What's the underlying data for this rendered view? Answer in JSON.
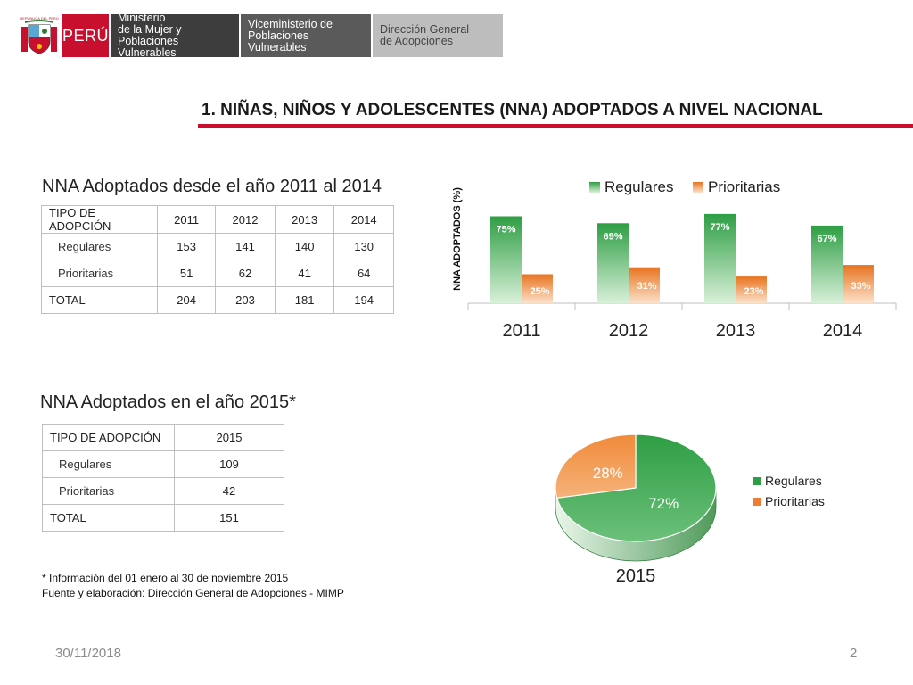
{
  "header": {
    "country": "PERÚ",
    "ministerio": [
      "Ministerio",
      "de la Mujer y",
      "Poblaciones Vulnerables"
    ],
    "viceministerio": [
      "Viceministerio de",
      "Poblaciones Vulnerables"
    ],
    "direccion": [
      "Dirección General",
      "de Adopciones"
    ],
    "crest_text": "REPÚBLICA DEL PERÚ"
  },
  "main_title": "1. NIÑAS, NIÑOS Y ADOLESCENTES (NNA) ADOPTADOS A NIVEL NACIONAL",
  "section1": {
    "title": "NNA Adoptados desde el año 2011 al 2014",
    "table": {
      "headers": [
        "TIPO DE ADOPCIÓN",
        "2011",
        "2012",
        "2013",
        "2014"
      ],
      "rows": [
        [
          "Regulares",
          "153",
          "141",
          "140",
          "130"
        ],
        [
          "Prioritarias",
          "51",
          "62",
          "41",
          "64"
        ],
        [
          "TOTAL",
          "204",
          "203",
          "181",
          "194"
        ]
      ]
    }
  },
  "section2": {
    "title": "NNA Adoptados en el año 2015*",
    "table": {
      "headers": [
        "TIPO DE ADOPCIÓN",
        "2015"
      ],
      "rows": [
        [
          "Regulares",
          "109"
        ],
        [
          "Prioritarias",
          "42"
        ],
        [
          "TOTAL",
          "151"
        ]
      ]
    }
  },
  "notes": [
    "* Información del  01 enero al 30 de noviembre 2015",
    "Fuente y elaboración: Dirección General de Adopciones - MIMP"
  ],
  "footer": {
    "date": "30/11/2018",
    "page": "2"
  },
  "colors": {
    "regulares": "#2e9e44",
    "prioritarias": "#ed7d31",
    "accent": "#c8102e"
  },
  "chart_data": [
    {
      "type": "bar",
      "ylabel": "NNA ADOPTADOS (%)",
      "categories": [
        "2011",
        "2012",
        "2013",
        "2014"
      ],
      "series": [
        {
          "name": "Regulares",
          "values": [
            75,
            69,
            77,
            67
          ],
          "labels": [
            "75%",
            "69%",
            "77%",
            "67%"
          ]
        },
        {
          "name": "Prioritarias",
          "values": [
            25,
            31,
            23,
            33
          ],
          "labels": [
            "25%",
            "31%",
            "23%",
            "33%"
          ]
        }
      ],
      "ylim": [
        0,
        100
      ],
      "legend": "top"
    },
    {
      "type": "pie",
      "xlabel": "2015",
      "categories": [
        "Regulares",
        "Prioritarias"
      ],
      "values": [
        72,
        28
      ],
      "labels": [
        "72%",
        "28%"
      ],
      "legend": "right"
    }
  ]
}
